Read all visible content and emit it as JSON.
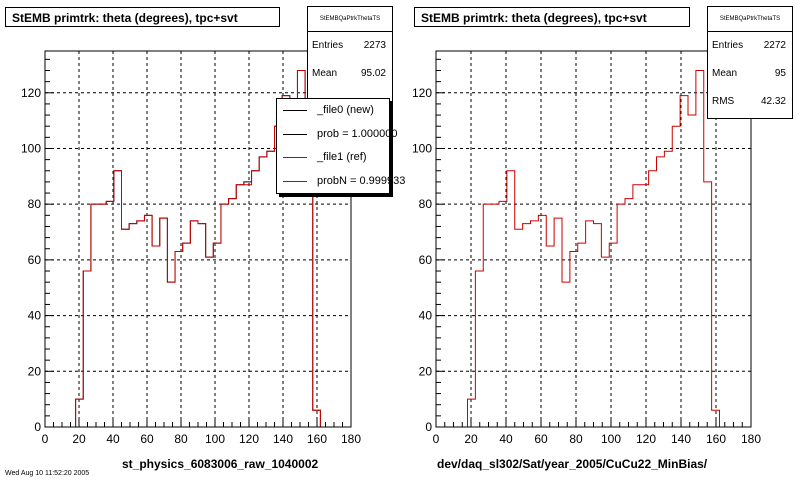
{
  "colors": {
    "new_line": "#000000",
    "ref_line": "#cc0000",
    "grid": "#000000",
    "background": "#ffffff"
  },
  "panels": [
    {
      "title": "StEMB primtrk: theta (degrees), tpc+svt",
      "stats": {
        "name": "StEMBQaPtrkThetaTS",
        "entries_label": "Entries",
        "entries": "2273",
        "mean_label": "Mean",
        "mean": "95.02"
      },
      "xlabel": "st_physics_6083006_raw_1040002",
      "legend": [
        {
          "label": "_file0 (new)",
          "color": "#000000"
        },
        {
          "label": "prob = 1.000000",
          "color": "#000000"
        },
        {
          "label": "_file1 (ref)",
          "color": "#cc0000"
        },
        {
          "label": "probN = 0.999933",
          "color": "#cc0000"
        }
      ]
    },
    {
      "title": "StEMB primtrk: theta (degrees), tpc+svt",
      "stats": {
        "name": "StEMBQaPtrkThetaTS",
        "entries_label": "Entries",
        "entries": "2272",
        "mean_label": "Mean",
        "mean": "95",
        "rms_label": "RMS",
        "rms": "42.32"
      },
      "xlabel": "dev/daq_sl302/Sat/year_2005/CuCu22_MinBias/"
    }
  ],
  "footer_text": "Wed Aug 10 11:52:20 2005",
  "chart_data": [
    {
      "type": "line",
      "title": "StEMB primtrk: theta (degrees), tpc+svt",
      "xlabel": "st_physics_6083006_raw_1040002",
      "ylabel": "",
      "xlim": [
        0,
        180
      ],
      "ylim": [
        0,
        135
      ],
      "xticks": [
        0,
        20,
        40,
        60,
        80,
        100,
        120,
        140,
        160,
        180
      ],
      "yticks": [
        0,
        20,
        40,
        60,
        80,
        100,
        120
      ],
      "grid": true,
      "legend_position": "top-right",
      "bin_edges": [
        0,
        4.5,
        9,
        13.5,
        18,
        22.5,
        27,
        31.5,
        36,
        40.5,
        45,
        49.5,
        54,
        58.5,
        63,
        67.5,
        72,
        76.5,
        81,
        85.5,
        90,
        94.5,
        99,
        103.5,
        108,
        112.5,
        117,
        121.5,
        126,
        130.5,
        135,
        139.5,
        144,
        148.5,
        153,
        157.5,
        162,
        166.5,
        171,
        175.5,
        180
      ],
      "series": [
        {
          "name": "_file0 (new)",
          "values": [
            0,
            0,
            0,
            0,
            10,
            56,
            80,
            80,
            81,
            92,
            71,
            73,
            74,
            76,
            65,
            75,
            52,
            63,
            66,
            74,
            73,
            61,
            66,
            80,
            82,
            87,
            88,
            92,
            97,
            99,
            108,
            119,
            112,
            128,
            88,
            6,
            0,
            0,
            0,
            0
          ]
        },
        {
          "name": "_file1 (ref)",
          "values": [
            0,
            0,
            0,
            0,
            10,
            56,
            80,
            80,
            81,
            92,
            71,
            73,
            74,
            76,
            65,
            75,
            52,
            63,
            66,
            74,
            73,
            61,
            66,
            80,
            82,
            87,
            87,
            92,
            97,
            99,
            108,
            119,
            112,
            128,
            88,
            6,
            0,
            0,
            0,
            0
          ]
        }
      ]
    },
    {
      "type": "line",
      "title": "StEMB primtrk: theta (degrees), tpc+svt",
      "xlabel": "dev/daq_sl302/Sat/year_2005/CuCu22_MinBias/",
      "ylabel": "",
      "xlim": [
        0,
        180
      ],
      "ylim": [
        0,
        135
      ],
      "xticks": [
        0,
        20,
        40,
        60,
        80,
        100,
        120,
        140,
        160,
        180
      ],
      "yticks": [
        0,
        20,
        40,
        60,
        80,
        100,
        120
      ],
      "grid": true,
      "bin_edges": [
        0,
        4.5,
        9,
        13.5,
        18,
        22.5,
        27,
        31.5,
        36,
        40.5,
        45,
        49.5,
        54,
        58.5,
        63,
        67.5,
        72,
        76.5,
        81,
        85.5,
        90,
        94.5,
        99,
        103.5,
        108,
        112.5,
        117,
        121.5,
        126,
        130.5,
        135,
        139.5,
        144,
        148.5,
        153,
        157.5,
        162,
        166.5,
        171,
        175.5,
        180
      ],
      "series": [
        {
          "values": [
            0,
            0,
            0,
            0,
            10,
            56,
            80,
            80,
            81,
            92,
            71,
            73,
            74,
            76,
            65,
            75,
            52,
            63,
            66,
            74,
            73,
            61,
            66,
            80,
            82,
            87,
            87,
            92,
            97,
            99,
            108,
            119,
            112,
            128,
            88,
            6,
            0,
            0,
            0,
            0
          ]
        }
      ]
    }
  ]
}
